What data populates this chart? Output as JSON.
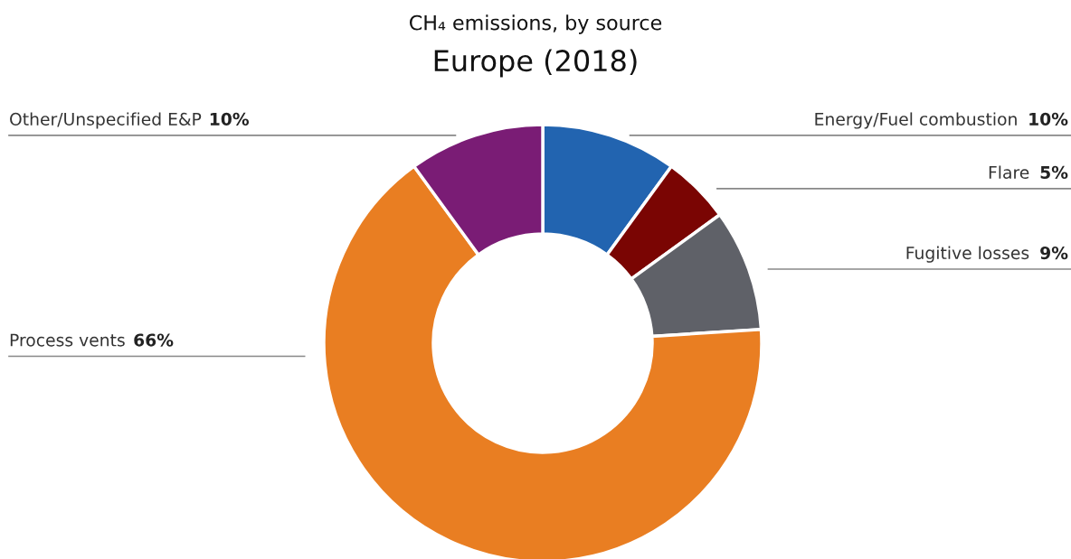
{
  "chart_data": {
    "type": "donut",
    "title": "CH₄ emissions, by source",
    "subtitle": "Europe (2018)",
    "categories": [
      "Energy/Fuel combustion",
      "Flare",
      "Fugitive losses",
      "Process vents",
      "Other/Unspecified E&P"
    ],
    "values": [
      10,
      5,
      9,
      66,
      10
    ],
    "value_labels": [
      "10%",
      "5%",
      "9%",
      "66%",
      "10%"
    ],
    "colors": [
      "#2264b0",
      "#7a0503",
      "#5f6168",
      "#e97e22",
      "#7a1c75"
    ]
  }
}
